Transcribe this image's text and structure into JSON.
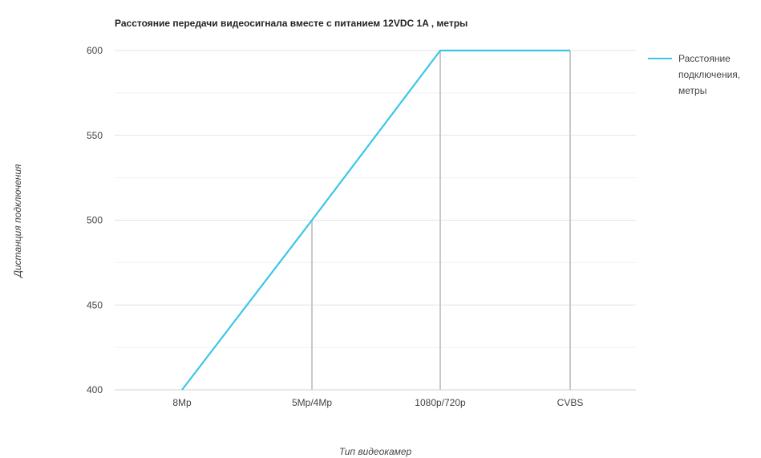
{
  "chart_data": {
    "type": "line",
    "title": "Расстояние передачи видеосигнала вместе с питанием 12VDC 1A , метры",
    "xlabel": "Тип видеокамер",
    "ylabel": "Дистанция подключения",
    "categories": [
      "8Mp",
      "5Mp/4Mp",
      "1080p/720p",
      "CVBS"
    ],
    "series": [
      {
        "name": "Расстояние подключения, метры",
        "values": [
          400,
          500,
          600,
          600
        ]
      }
    ],
    "ylim": [
      400,
      600
    ],
    "yticks": [
      400,
      450,
      500,
      550,
      600
    ],
    "grid": true,
    "drop_lines": true,
    "legend": "right",
    "colors": {
      "series": "#3cc6e8",
      "grid": "#e3e3e3",
      "drop_line": "#c8c8c8",
      "axis": "#d0d0d0"
    }
  }
}
